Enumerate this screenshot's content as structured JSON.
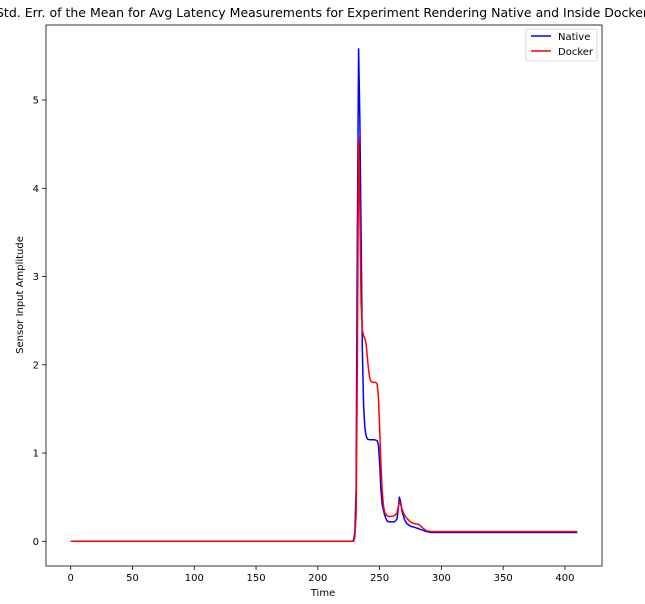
{
  "chart_data": {
    "type": "line",
    "title": "Std. Err. of the Mean for Avg Latency Measurements for Experiment Rendering Native and Inside Docker",
    "xlabel": "Time",
    "ylabel": "Sensor Input Amplitude",
    "xlim": [
      -20,
      430
    ],
    "ylim": [
      -0.28,
      5.85
    ],
    "xticks": [
      0,
      50,
      100,
      150,
      200,
      250,
      300,
      350,
      400
    ],
    "yticks": [
      0,
      1,
      2,
      3,
      4,
      5
    ],
    "grid": false,
    "legend_position": "top-right",
    "series": [
      {
        "name": "Native",
        "color": "#0000ff",
        "points": [
          [
            0,
            0
          ],
          [
            100,
            0
          ],
          [
            200,
            0
          ],
          [
            228,
            0
          ],
          [
            229,
            0.02
          ],
          [
            230,
            0.1
          ],
          [
            231,
            0.6
          ],
          [
            232,
            3.5
          ],
          [
            233,
            5.58
          ],
          [
            234,
            4.8
          ],
          [
            235,
            3.5
          ],
          [
            236,
            2.2
          ],
          [
            237,
            1.55
          ],
          [
            238,
            1.3
          ],
          [
            239,
            1.2
          ],
          [
            240,
            1.16
          ],
          [
            242,
            1.15
          ],
          [
            244,
            1.15
          ],
          [
            246,
            1.15
          ],
          [
            248,
            1.14
          ],
          [
            249,
            1.1
          ],
          [
            250,
            0.9
          ],
          [
            251,
            0.6
          ],
          [
            252,
            0.42
          ],
          [
            254,
            0.3
          ],
          [
            256,
            0.23
          ],
          [
            258,
            0.22
          ],
          [
            262,
            0.22
          ],
          [
            264,
            0.25
          ],
          [
            265,
            0.35
          ],
          [
            266,
            0.5
          ],
          [
            267,
            0.45
          ],
          [
            268,
            0.35
          ],
          [
            270,
            0.25
          ],
          [
            272,
            0.2
          ],
          [
            275,
            0.17
          ],
          [
            278,
            0.16
          ],
          [
            280,
            0.15
          ],
          [
            284,
            0.13
          ],
          [
            288,
            0.11
          ],
          [
            292,
            0.1
          ],
          [
            300,
            0.1
          ],
          [
            310,
            0.1
          ],
          [
            320,
            0.1
          ],
          [
            330,
            0.1
          ],
          [
            340,
            0.1
          ],
          [
            350,
            0.1
          ],
          [
            360,
            0.1
          ],
          [
            370,
            0.1
          ],
          [
            380,
            0.1
          ],
          [
            390,
            0.1
          ],
          [
            400,
            0.1
          ],
          [
            410,
            0.1
          ]
        ]
      },
      {
        "name": "Docker",
        "color": "#ff0000",
        "points": [
          [
            0,
            0
          ],
          [
            100,
            0
          ],
          [
            200,
            0
          ],
          [
            229,
            0
          ],
          [
            230,
            0.05
          ],
          [
            231,
            0.3
          ],
          [
            232,
            2.0
          ],
          [
            233,
            4.57
          ],
          [
            234,
            3.8
          ],
          [
            235,
            2.7
          ],
          [
            236,
            2.4
          ],
          [
            237,
            2.33
          ],
          [
            238,
            2.3
          ],
          [
            239,
            2.25
          ],
          [
            240,
            2.1
          ],
          [
            241,
            1.95
          ],
          [
            242,
            1.85
          ],
          [
            243,
            1.81
          ],
          [
            245,
            1.8
          ],
          [
            247,
            1.8
          ],
          [
            248,
            1.78
          ],
          [
            249,
            1.65
          ],
          [
            250,
            1.3
          ],
          [
            251,
            0.9
          ],
          [
            252,
            0.6
          ],
          [
            253,
            0.42
          ],
          [
            254,
            0.33
          ],
          [
            256,
            0.29
          ],
          [
            258,
            0.28
          ],
          [
            262,
            0.29
          ],
          [
            264,
            0.32
          ],
          [
            265,
            0.38
          ],
          [
            266,
            0.45
          ],
          [
            267,
            0.42
          ],
          [
            268,
            0.37
          ],
          [
            270,
            0.3
          ],
          [
            272,
            0.26
          ],
          [
            275,
            0.22
          ],
          [
            278,
            0.2
          ],
          [
            282,
            0.19
          ],
          [
            285,
            0.15
          ],
          [
            288,
            0.12
          ],
          [
            292,
            0.11
          ],
          [
            300,
            0.11
          ],
          [
            310,
            0.11
          ],
          [
            320,
            0.11
          ],
          [
            330,
            0.11
          ],
          [
            340,
            0.11
          ],
          [
            350,
            0.11
          ],
          [
            360,
            0.11
          ],
          [
            370,
            0.11
          ],
          [
            380,
            0.11
          ],
          [
            390,
            0.11
          ],
          [
            400,
            0.11
          ],
          [
            410,
            0.11
          ]
        ]
      }
    ]
  }
}
